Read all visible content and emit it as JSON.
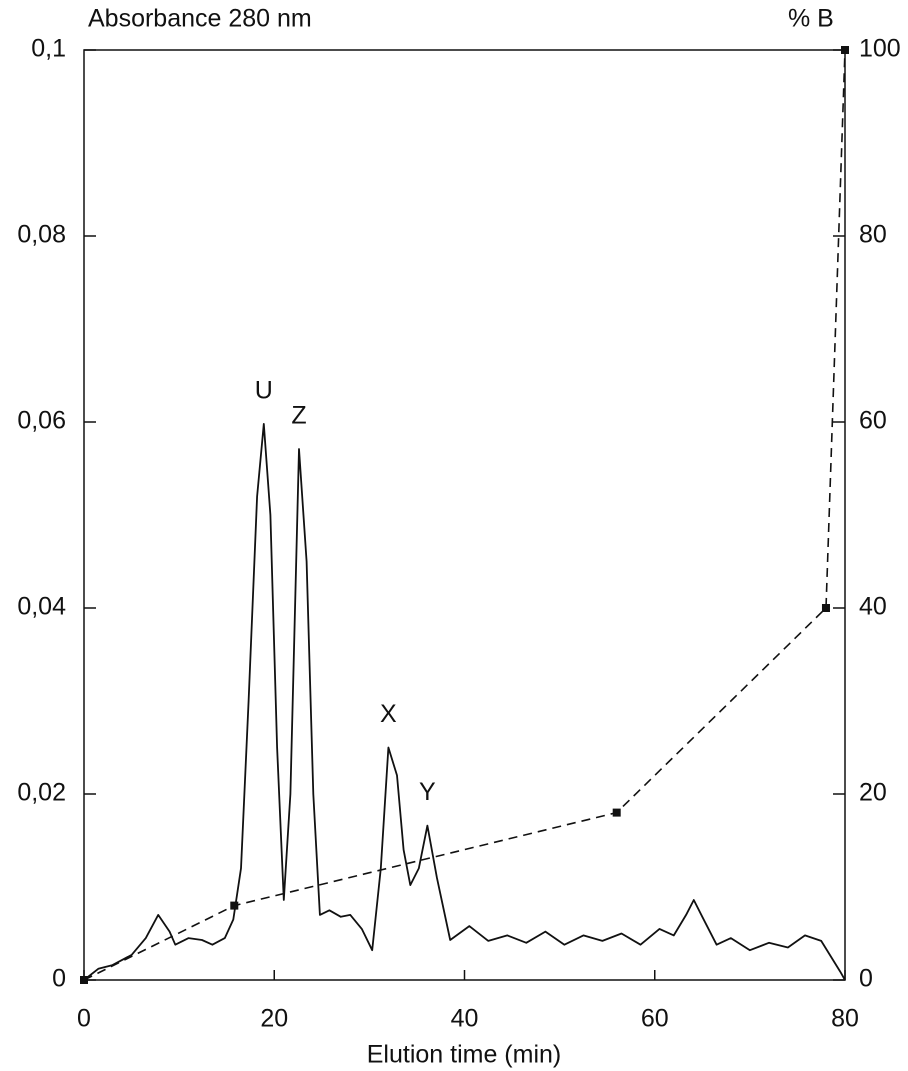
{
  "chart_data": {
    "type": "line",
    "ylabel": "Absorbance 280 nm",
    "y2label": "% B",
    "xlabel": "Elution time (min)",
    "xlim": [
      0,
      80
    ],
    "xticks": [
      0,
      20,
      40,
      60,
      80
    ],
    "ylim": [
      0,
      0.1
    ],
    "yticks": [
      0,
      {
        "value": 0.02,
        "label": "0,02"
      },
      {
        "value": 0.04,
        "label": "0,04"
      },
      {
        "value": 0.06,
        "label": "0,06"
      },
      {
        "value": 0.08,
        "label": "0,08"
      },
      {
        "value": 0.1,
        "label": "0,1"
      }
    ],
    "y2lim": [
      0,
      100
    ],
    "y2ticks": [
      0,
      20,
      40,
      60,
      80,
      100
    ],
    "series": [
      {
        "color": "#111111",
        "style": "solid",
        "x": [
          0,
          1.5,
          3,
          5,
          6.5,
          7.8,
          9,
          9.6,
          11,
          12.4,
          13.5,
          14.8,
          15.7,
          16.5,
          17.3,
          18.2,
          18.9,
          19.6,
          20.3,
          21,
          21.7,
          22.6,
          23.4,
          24.1,
          24.8,
          25.8,
          27,
          28,
          29.2,
          30.3,
          31.2,
          32,
          32.9,
          33.6,
          34.3,
          35.2,
          36.1,
          37.1,
          38.5,
          40.5,
          42.5,
          44.5,
          46.5,
          48.5,
          50.5,
          52.5,
          54.5,
          56.5,
          58.5,
          60.5,
          62,
          63.3,
          64.1,
          65,
          66.5,
          68,
          70,
          72,
          74,
          75.8,
          77.5,
          79.5,
          80
        ],
        "values": [
          0,
          0.0012,
          0.0016,
          0.0027,
          0.0045,
          0.007,
          0.0052,
          0.0038,
          0.0045,
          0.0043,
          0.0038,
          0.0045,
          0.0065,
          0.012,
          0.03,
          0.052,
          0.0598,
          0.05,
          0.025,
          0.0086,
          0.02,
          0.0571,
          0.045,
          0.02,
          0.007,
          0.0075,
          0.0068,
          0.007,
          0.0055,
          0.0032,
          0.012,
          0.025,
          0.022,
          0.014,
          0.0102,
          0.012,
          0.0166,
          0.011,
          0.0043,
          0.0058,
          0.0042,
          0.0048,
          0.004,
          0.0052,
          0.0038,
          0.0048,
          0.0042,
          0.005,
          0.0038,
          0.0055,
          0.0048,
          0.007,
          0.0086,
          0.0068,
          0.0038,
          0.0045,
          0.0032,
          0.004,
          0.0035,
          0.0048,
          0.0042,
          0.0009,
          0
        ]
      },
      {
        "color": "#111111",
        "style": "dashed",
        "axis": "y2",
        "x": [
          0,
          15.8,
          56,
          78,
          80
        ],
        "values": [
          0,
          8,
          18,
          40,
          100
        ]
      }
    ],
    "annotations": [
      {
        "text": "U",
        "x": 18.9,
        "y": 0.0598
      },
      {
        "text": "Z",
        "x": 22.6,
        "y": 0.0571
      },
      {
        "text": "X",
        "x": 32,
        "y": 0.025
      },
      {
        "text": "Y",
        "x": 36.1,
        "y": 0.0166
      }
    ]
  }
}
